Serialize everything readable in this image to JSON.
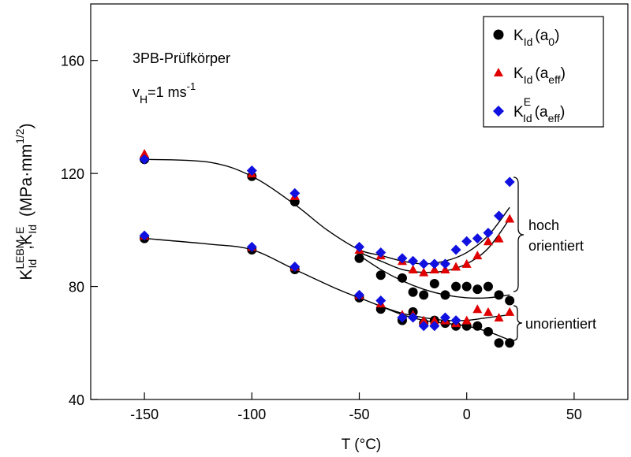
{
  "chart_data": {
    "type": "scatter",
    "xlabel": "T (°C)",
    "ylabel": {
      "K1": "K",
      "sup1": "LEBM",
      "sub1": "Id",
      "comma": ",",
      "K2": "K",
      "sup2": "E",
      "sub2": "Id",
      "units": "(MPa·mm",
      "units_sup": "1/2",
      "units_close": ")"
    },
    "xlim": [
      -175,
      75
    ],
    "ylim": [
      40,
      180
    ],
    "xticks": [
      -150,
      -100,
      -50,
      0,
      50
    ],
    "xtick_labels": [
      "-150",
      "-100",
      "-50",
      "0",
      "50"
    ],
    "yticks": [
      40,
      80,
      120,
      160
    ],
    "ytick_labels": [
      "40",
      "80",
      "120",
      "160"
    ],
    "grid": false,
    "legend_position": "top-right",
    "annotations": {
      "specimen": "3PB-Prüfkörper",
      "rate": {
        "v": "v",
        "sub": "H",
        "rest": "=1 ms",
        "sup": "-1"
      },
      "hoch1": "hoch",
      "hoch2": "orientiert",
      "unorientiert": "unorientiert"
    },
    "series": [
      {
        "name": "K_Id(a_0)",
        "legend": {
          "K": "K",
          "sub": "Id",
          "open": "(a",
          "asub": "0",
          "close": ")"
        },
        "marker": "circle",
        "color": "#000000",
        "points": [
          [
            -150,
            125
          ],
          [
            -150,
            97
          ],
          [
            -100,
            119
          ],
          [
            -100,
            93
          ],
          [
            -80,
            110
          ],
          [
            -80,
            86
          ],
          [
            -50,
            90
          ],
          [
            -50,
            76
          ],
          [
            -40,
            84
          ],
          [
            -40,
            72
          ],
          [
            -30,
            83
          ],
          [
            -30,
            68
          ],
          [
            -25,
            78
          ],
          [
            -25,
            71
          ],
          [
            -20,
            77
          ],
          [
            -20,
            67
          ],
          [
            -15,
            81
          ],
          [
            -15,
            68
          ],
          [
            -10,
            77
          ],
          [
            -10,
            67
          ],
          [
            -5,
            80
          ],
          [
            -5,
            66
          ],
          [
            0,
            80
          ],
          [
            0,
            66
          ],
          [
            5,
            79
          ],
          [
            5,
            66
          ],
          [
            10,
            80
          ],
          [
            10,
            64
          ],
          [
            15,
            77
          ],
          [
            15,
            60
          ],
          [
            20,
            75
          ],
          [
            20,
            60
          ]
        ]
      },
      {
        "name": "K_Id(a_eff)",
        "legend": {
          "K": "K",
          "sub": "Id",
          "open": "(a",
          "asub": "eff",
          "close": ")"
        },
        "marker": "triangle",
        "color": "#e00000",
        "points": [
          [
            -150,
            127
          ],
          [
            -150,
            98
          ],
          [
            -100,
            120
          ],
          [
            -100,
            94
          ],
          [
            -80,
            112
          ],
          [
            -80,
            87
          ],
          [
            -50,
            93
          ],
          [
            -50,
            77
          ],
          [
            -40,
            91
          ],
          [
            -40,
            74
          ],
          [
            -30,
            89
          ],
          [
            -30,
            70
          ],
          [
            -25,
            86
          ],
          [
            -25,
            70
          ],
          [
            -20,
            85
          ],
          [
            -20,
            68
          ],
          [
            -15,
            86
          ],
          [
            -15,
            68
          ],
          [
            -10,
            86
          ],
          [
            -10,
            68
          ],
          [
            -5,
            87
          ],
          [
            -5,
            67
          ],
          [
            0,
            88
          ],
          [
            0,
            68
          ],
          [
            5,
            91
          ],
          [
            5,
            72
          ],
          [
            10,
            96
          ],
          [
            10,
            71
          ],
          [
            15,
            97
          ],
          [
            15,
            69
          ],
          [
            20,
            104
          ],
          [
            20,
            71
          ]
        ]
      },
      {
        "name": "K^E_Id(a_eff)",
        "legend": {
          "K": "K",
          "sup": "E",
          "sub": "Id",
          "open": "(a",
          "asub": "eff",
          "close": ")"
        },
        "marker": "diamond",
        "color": "#1010e0",
        "points": [
          [
            -150,
            125
          ],
          [
            -150,
            98
          ],
          [
            -100,
            121
          ],
          [
            -100,
            94
          ],
          [
            -80,
            113
          ],
          [
            -80,
            87
          ],
          [
            -50,
            94
          ],
          [
            -50,
            77
          ],
          [
            -40,
            92
          ],
          [
            -40,
            75
          ],
          [
            -30,
            90
          ],
          [
            -30,
            69
          ],
          [
            -25,
            89
          ],
          [
            -25,
            69
          ],
          [
            -20,
            88
          ],
          [
            -20,
            66
          ],
          [
            -15,
            88
          ],
          [
            -15,
            66
          ],
          [
            -10,
            88
          ],
          [
            -10,
            69
          ],
          [
            -5,
            93
          ],
          [
            -5,
            68
          ],
          [
            0,
            96
          ],
          [
            5,
            97
          ],
          [
            10,
            99
          ],
          [
            15,
            105
          ],
          [
            20,
            117
          ]
        ]
      }
    ],
    "fit_curves": [
      {
        "points": [
          [
            -150,
            125
          ],
          [
            -120,
            124
          ],
          [
            -100,
            119
          ],
          [
            -80,
            109
          ],
          [
            -65,
            100
          ],
          [
            -50,
            93
          ],
          [
            -40,
            91
          ],
          [
            -30,
            89
          ],
          [
            -20,
            88
          ],
          [
            -10,
            89
          ],
          [
            0,
            92
          ],
          [
            10,
            98
          ],
          [
            20,
            108
          ]
        ]
      },
      {
        "points": [
          [
            -50,
            92
          ],
          [
            -40,
            89
          ],
          [
            -30,
            86
          ],
          [
            -20,
            85
          ],
          [
            -10,
            85.5
          ],
          [
            0,
            88
          ],
          [
            10,
            93.5
          ],
          [
            20,
            104
          ]
        ]
      },
      {
        "points": [
          [
            -50,
            91
          ],
          [
            -40,
            86
          ],
          [
            -30,
            82
          ],
          [
            -20,
            79
          ],
          [
            -10,
            77
          ],
          [
            0,
            76
          ],
          [
            10,
            76
          ],
          [
            20,
            77
          ]
        ]
      },
      {
        "points": [
          [
            -150,
            97
          ],
          [
            -120,
            95
          ],
          [
            -100,
            93
          ],
          [
            -80,
            86
          ],
          [
            -60,
            79
          ],
          [
            -50,
            76
          ],
          [
            -40,
            73
          ],
          [
            -30,
            70
          ],
          [
            -20,
            68
          ],
          [
            -10,
            67
          ],
          [
            0,
            66
          ],
          [
            10,
            64
          ],
          [
            20,
            61
          ]
        ]
      },
      {
        "points": [
          [
            -40,
            73
          ],
          [
            -30,
            70.5
          ],
          [
            -20,
            69
          ],
          [
            -10,
            68
          ],
          [
            0,
            68
          ],
          [
            10,
            69
          ],
          [
            20,
            70
          ]
        ]
      }
    ]
  }
}
